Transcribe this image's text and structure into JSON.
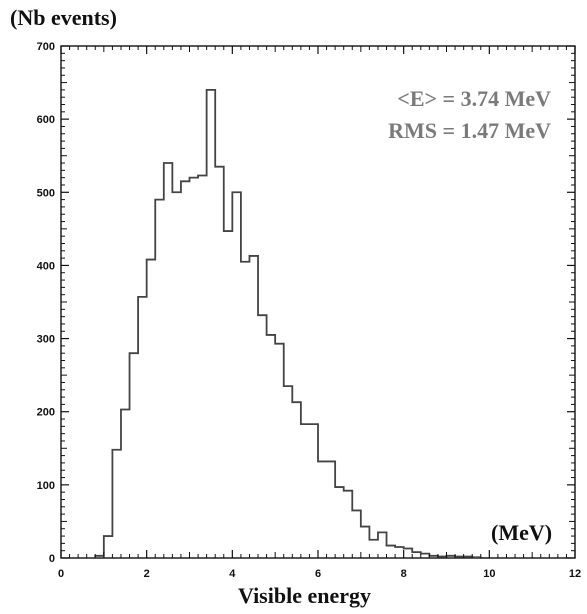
{
  "chart_data": {
    "type": "bar",
    "subtype": "step-histogram",
    "ylabel": "(Nb events)",
    "xlabel": "Visible energy",
    "unit_label": "(MeV)",
    "stats": {
      "mean_text": "<E> = 3.74 MeV",
      "rms_text": "RMS = 1.47 MeV"
    },
    "xlim": [
      0,
      12
    ],
    "ylim": [
      0,
      700
    ],
    "x_ticks": [
      0,
      2,
      4,
      6,
      8,
      10,
      12
    ],
    "y_ticks": [
      0,
      100,
      200,
      300,
      400,
      500,
      600,
      700
    ],
    "bin_width": 0.2,
    "bins_x_start": [
      0.8,
      1.0,
      1.2,
      1.4,
      1.6,
      1.8,
      2.0,
      2.2,
      2.4,
      2.6,
      2.8,
      3.0,
      3.2,
      3.4,
      3.6,
      3.8,
      4.0,
      4.2,
      4.4,
      4.6,
      4.8,
      5.0,
      5.2,
      5.4,
      5.6,
      5.8,
      6.0,
      6.2,
      6.4,
      6.6,
      6.8,
      7.0,
      7.2,
      7.4,
      7.6,
      7.8,
      8.0,
      8.2,
      8.4,
      8.6,
      8.8,
      9.0,
      9.2,
      9.4,
      9.6,
      9.8
    ],
    "values": [
      3,
      30,
      148,
      203,
      280,
      357,
      408,
      490,
      540,
      500,
      515,
      520,
      523,
      640,
      535,
      447,
      500,
      405,
      413,
      332,
      305,
      293,
      235,
      213,
      183,
      183,
      132,
      132,
      97,
      92,
      65,
      43,
      25,
      35,
      17,
      15,
      13,
      8,
      6,
      3,
      2,
      3,
      2,
      2,
      1,
      0
    ],
    "grid": false,
    "line_color": "#444444",
    "frame_color": "#111111",
    "stats_color": "#7a7a7a"
  }
}
